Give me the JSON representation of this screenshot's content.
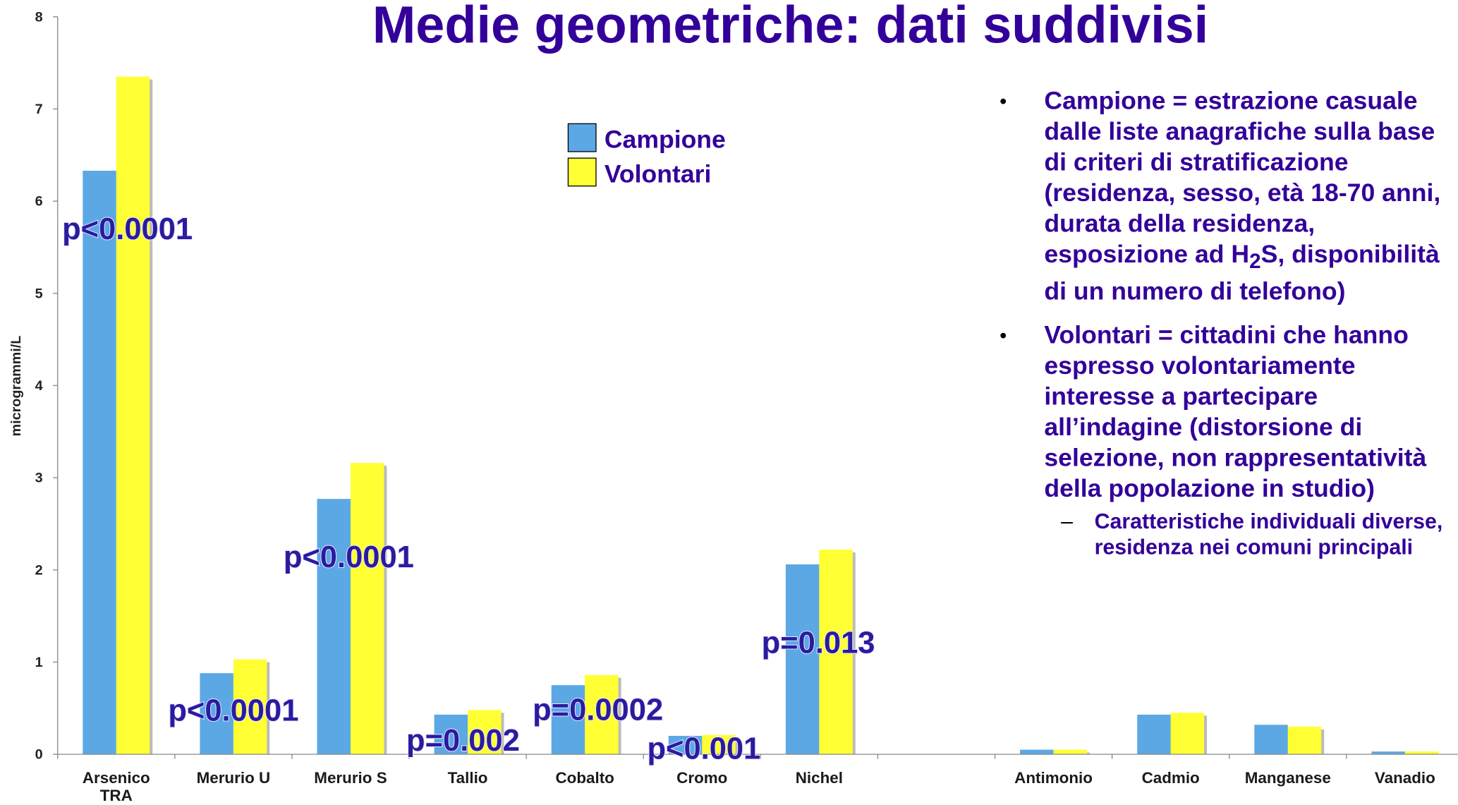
{
  "chart_data": {
    "type": "bar",
    "title": "Medie geometriche: dati suddivisi",
    "y_label": "microgrammi/L",
    "categories": [
      "Arsenico TRA",
      "Merurio U",
      "Merurio S",
      "Tallio",
      "Cobalto",
      "Cromo",
      "Nichel",
      null,
      "Antimonio",
      "Cadmio",
      "Manganese",
      "Vanadio"
    ],
    "series": [
      {
        "name": "Campione",
        "color": "#5ba8e5",
        "values": [
          6.33,
          0.88,
          2.77,
          0.43,
          0.75,
          0.2,
          2.06,
          null,
          0.05,
          0.43,
          0.32,
          0.03
        ]
      },
      {
        "name": "Volontari",
        "color": "#ffff33",
        "values": [
          7.35,
          1.03,
          3.16,
          0.48,
          0.86,
          0.21,
          2.22,
          null,
          0.05,
          0.45,
          0.3,
          0.03
        ]
      }
    ],
    "ylim": [
      0,
      8
    ],
    "yticks": [
      0,
      1,
      2,
      3,
      4,
      5,
      6,
      7,
      8
    ],
    "annotations": [
      "p<0.0001",
      "p<0.0001",
      "p<0.0001",
      "p=0.002",
      "p=0.0002",
      "p<0.001",
      "p=0.013"
    ],
    "notes": {
      "bullets": [
        {
          "before": "Campione = estrazione casuale dalle liste anagrafiche sulla base di criteri di stratificazione (residenza, sesso, età 18-70 anni, durata della residenza, esposizione ad H",
          "sub": "2",
          "after": "S, disponibilità di un numero di telefono)"
        },
        {
          "text": "Volontari = cittadini che hanno espresso volontariamente interesse a partecipare all’indagine (distorsione di selezione, non rappresentatività della popolazione in studio)",
          "subbullet": "Caratteristiche individuali diverse, residenza nei comuni principali"
        }
      ]
    }
  }
}
